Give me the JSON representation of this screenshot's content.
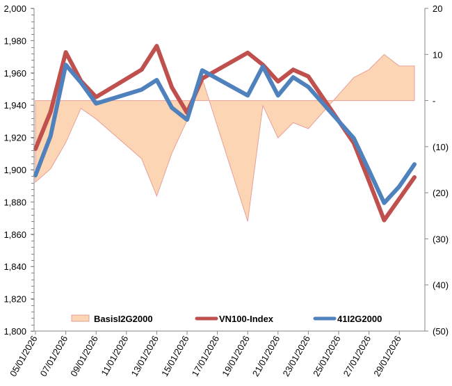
{
  "chart_data": {
    "type": "line",
    "title": "",
    "xlabel": "",
    "ylabel": "",
    "y2label": "",
    "grid": false,
    "legend_position": "bottom-inside",
    "x": [
      "05/01/2026",
      "06/01/2026",
      "07/01/2026",
      "08/01/2026",
      "09/01/2026",
      "12/01/2026",
      "13/01/2026",
      "14/01/2026",
      "15/01/2026",
      "16/01/2026",
      "19/01/2026",
      "20/01/2026",
      "21/01/2026",
      "22/01/2026",
      "23/01/2026",
      "26/01/2026",
      "27/01/2026",
      "28/01/2026",
      "29/01/2026",
      "30/01/2026"
    ],
    "x_day_offsets": [
      0,
      1,
      2,
      3,
      4,
      7,
      8,
      9,
      10,
      11,
      14,
      15,
      16,
      17,
      18,
      21,
      22,
      23,
      24,
      25
    ],
    "x_tick_labels": [
      "05/01/2026",
      "07/01/2026",
      "09/01/2026",
      "11/01/2026",
      "13/01/2026",
      "15/01/2026",
      "17/01/2026",
      "19/01/2026",
      "21/01/2026",
      "23/01/2026",
      "25/01/2026",
      "27/01/2026",
      "29/01/2026"
    ],
    "x_tick_day_offsets": [
      0,
      2,
      4,
      6,
      8,
      10,
      12,
      14,
      16,
      18,
      20,
      22,
      24
    ],
    "x_range_days": [
      0,
      25.7
    ],
    "y_left": {
      "range": [
        1800,
        2000
      ],
      "ticks": [
        1800,
        1820,
        1840,
        1860,
        1880,
        1900,
        1920,
        1940,
        1960,
        1980,
        2000
      ],
      "tick_labels": [
        "1,800",
        "1,820",
        "1,840",
        "1,860",
        "1,880",
        "1,900",
        "1,920",
        "1,940",
        "1,960",
        "1,980",
        "2,000"
      ],
      "minor_step": 4
    },
    "y_right": {
      "range": [
        -50,
        20
      ],
      "ticks": [
        -50,
        -40,
        -30,
        -20,
        -10,
        0,
        10,
        20
      ],
      "tick_labels": [
        "(50)",
        "(40)",
        "(30)",
        "(20)",
        "(10)",
        "-",
        "10",
        "20"
      ]
    },
    "series": [
      {
        "name": "BasisI2G2000",
        "type": "area",
        "axis": "right",
        "fill": "#FCD5B4",
        "stroke": "#E6A09A",
        "values": [
          -17.7,
          -14.8,
          -9.1,
          -1.7,
          -4.0,
          -12.6,
          -20.7,
          -11.4,
          -4.3,
          4.8,
          -26.2,
          -1.1,
          -8.1,
          -4.8,
          -6.1,
          5.0,
          6.7,
          10.0,
          7.5,
          7.5
        ]
      },
      {
        "name": "VN100-Index",
        "type": "line",
        "axis": "left",
        "color": "#C0504D",
        "values": [
          1912.9,
          1936.0,
          1972.8,
          1955.0,
          1945.0,
          1962.0,
          1976.7,
          1951.0,
          1935.3,
          1956.5,
          1972.5,
          1965.0,
          1954.7,
          1962.0,
          1957.8,
          1916.5,
          1893.0,
          1868.7,
          1882.0,
          1895.3
        ]
      },
      {
        "name": "41I2G2000",
        "type": "line",
        "axis": "left",
        "color": "#4F81BD",
        "values": [
          1896.5,
          1921.0,
          1965.0,
          1954.0,
          1941.0,
          1949.6,
          1955.6,
          1938.4,
          1931.0,
          1961.6,
          1946.0,
          1964.0,
          1946.0,
          1957.3,
          1951.3,
          1919.5,
          1899.6,
          1879.4,
          1889.6,
          1903.3
        ]
      }
    ],
    "legend": [
      {
        "label": "BasisI2G2000",
        "kind": "area-swatch"
      },
      {
        "label": "VN100-Index",
        "kind": "line"
      },
      {
        "label": "41I2G2000",
        "kind": "line"
      }
    ],
    "axis_color": "#868686"
  }
}
